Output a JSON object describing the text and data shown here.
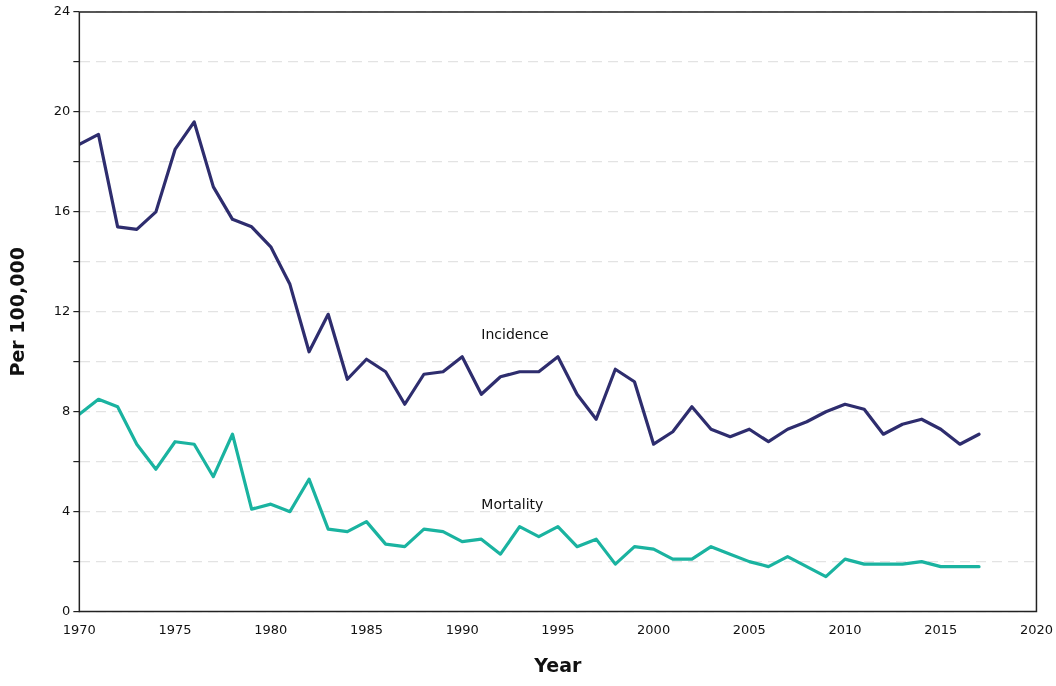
{
  "chart_data": {
    "type": "line",
    "xlabel": "Year",
    "ylabel": "Per 100,000",
    "x": [
      1970,
      1971,
      1972,
      1973,
      1974,
      1975,
      1976,
      1977,
      1978,
      1979,
      1980,
      1981,
      1982,
      1983,
      1984,
      1985,
      1986,
      1987,
      1988,
      1989,
      1990,
      1991,
      1992,
      1993,
      1994,
      1995,
      1996,
      1997,
      1998,
      1999,
      2000,
      2001,
      2002,
      2003,
      2004,
      2005,
      2006,
      2007,
      2008,
      2009,
      2010,
      2011,
      2012,
      2013,
      2014,
      2015,
      2016,
      2017
    ],
    "series": [
      {
        "name": "Incidence",
        "color": "#2e2d6e",
        "values": [
          18.7,
          19.1,
          15.4,
          15.3,
          16.0,
          18.5,
          19.6,
          17.0,
          15.7,
          15.4,
          14.6,
          13.1,
          10.4,
          11.9,
          9.3,
          10.1,
          9.6,
          8.3,
          9.5,
          9.6,
          10.2,
          8.7,
          9.4,
          9.6,
          9.6,
          10.2,
          8.7,
          7.7,
          9.7,
          9.2,
          6.7,
          7.2,
          8.2,
          7.3,
          7.0,
          7.3,
          6.8,
          7.3,
          7.6,
          8.0,
          8.3,
          8.1,
          7.1,
          7.5,
          7.7,
          7.3,
          6.7,
          7.1
        ]
      },
      {
        "name": "Mortality",
        "color": "#1ab3a0",
        "values": [
          7.9,
          8.5,
          8.2,
          6.7,
          5.7,
          6.8,
          6.7,
          5.4,
          7.1,
          4.1,
          4.3,
          4.0,
          5.3,
          3.3,
          3.2,
          3.6,
          2.7,
          2.6,
          3.3,
          3.2,
          2.8,
          2.9,
          2.3,
          3.4,
          3.0,
          3.4,
          2.6,
          2.9,
          1.9,
          2.6,
          2.5,
          2.1,
          2.1,
          2.6,
          2.3,
          2.0,
          1.8,
          2.2,
          1.8,
          1.4,
          2.1,
          1.9,
          1.9,
          1.9,
          2.0,
          1.8,
          1.8,
          1.8
        ]
      }
    ],
    "xlim": [
      1970,
      2020
    ],
    "xticks": [
      1970,
      1975,
      1980,
      1985,
      1990,
      1995,
      2000,
      2005,
      2010,
      2015,
      2020
    ],
    "ylim": [
      0,
      24
    ],
    "yticks": [
      0,
      {
        "value": 2,
        "label": null
      },
      4,
      {
        "value": 6,
        "label": null
      },
      8,
      {
        "value": 10,
        "label": null
      },
      12,
      {
        "value": 14,
        "label": null
      },
      16,
      {
        "value": 18,
        "label": null
      },
      20,
      {
        "value": 22,
        "label": null
      },
      24
    ],
    "grid": "y",
    "legend": false,
    "marker": "none",
    "line_style": "solid"
  }
}
